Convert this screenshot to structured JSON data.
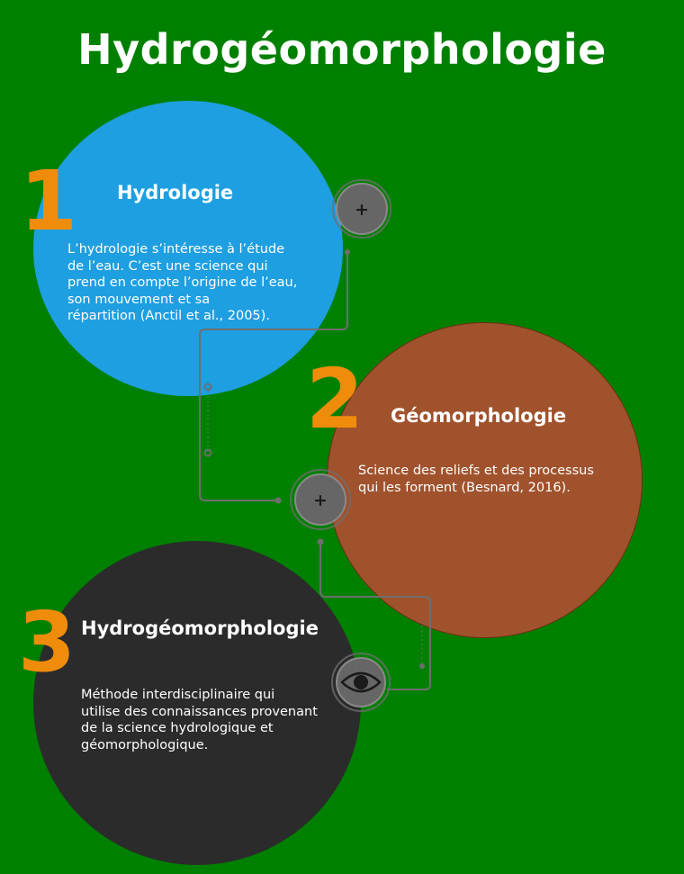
{
  "title": "Hydrogéomorphologie",
  "colors": {
    "background": "#008000",
    "circle_1": "#1e9fe1",
    "circle_2": "#a0522d",
    "circle_3": "#2b2b2b",
    "number": "#f08c0b",
    "connector": "#6e6e6e",
    "button": "#666666"
  },
  "steps": [
    {
      "number": "1",
      "heading": "Hydrologie",
      "text": "L’hydrologie s’intéresse à l’étude\n de l’eau. C’est une science qui\nprend en compte l’origine de l’eau,\nson mouvement et sa\nrépartition (Anctil et al., 2005).",
      "button_icon": "plus-icon",
      "button_glyph": "+"
    },
    {
      "number": "2",
      "heading": "Géomorphologie",
      "text": "Science des reliefs et des processus\nqui les forment (Besnard, 2016).",
      "button_icon": "plus-icon",
      "button_glyph": "+"
    },
    {
      "number": "3",
      "heading": "Hydrogéomorphologie",
      "text": "Méthode interdisciplinaire qui\nutilise des connaissances provenant\nde la science hydrologique et\ngéomorphologique.",
      "button_icon": "eye-icon"
    }
  ]
}
